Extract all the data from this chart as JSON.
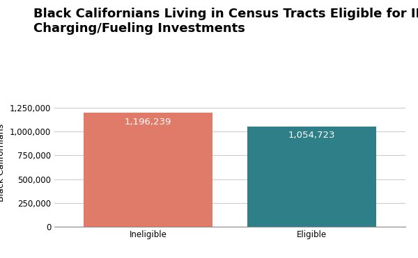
{
  "categories": [
    "Ineligible",
    "Eligible"
  ],
  "values": [
    1196239,
    1054723
  ],
  "bar_colors": [
    "#E07B6A",
    "#2E7F87"
  ],
  "labels": [
    "1,196,239",
    "1,054,723"
  ],
  "title_line1": "Black Californians Living in Census Tracts Eligible for IRA",
  "title_line2": "Charging/Fueling Investments",
  "ylabel": "Black Californians",
  "ylim": [
    0,
    1350000
  ],
  "yticks": [
    0,
    250000,
    500000,
    750000,
    1000000,
    1250000
  ],
  "background_color": "#ffffff",
  "title_fontsize": 13,
  "label_fontsize": 9.5,
  "ylabel_fontsize": 9,
  "tick_fontsize": 8.5,
  "bar_width": 0.55
}
